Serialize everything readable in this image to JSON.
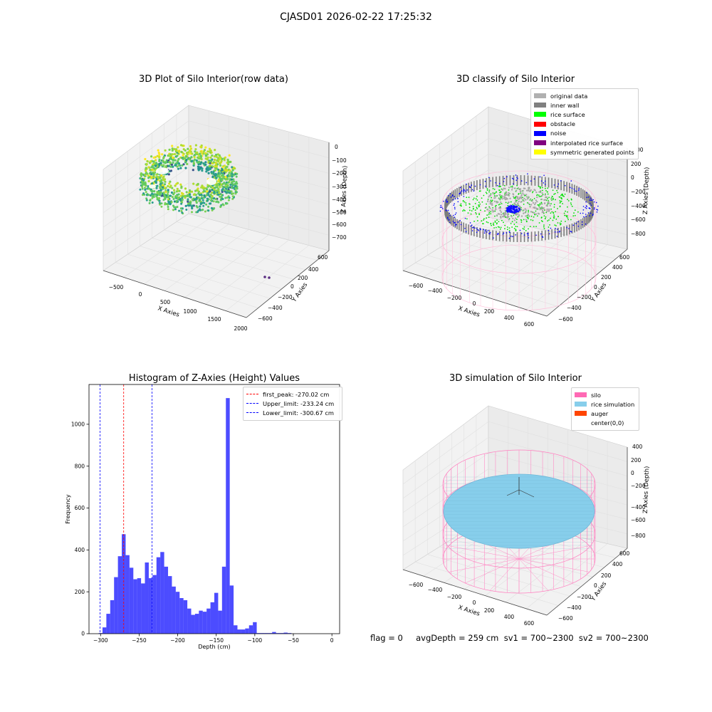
{
  "suptitle": "CJASD01 2026-02-22 17:25:32",
  "footer": "flag = 0     avgDepth = 259 cm  sv1 = 700~2300  sv2 = 700~2300",
  "panels": {
    "raw": {
      "title": "3D Plot of Silo Interior(row data)",
      "xlabel": "X Axies",
      "ylabel": "Y Axies",
      "zlabel": "Z Axies (Depth)",
      "xticks": [
        "−500",
        "0",
        "500",
        "1000",
        "1500",
        "2000"
      ],
      "yticks": [
        "600",
        "400",
        "200",
        "0",
        "−200",
        "−400",
        "−600"
      ],
      "zticks": [
        "0",
        "−100",
        "−200",
        "−300",
        "−400",
        "−500",
        "−600",
        "−700"
      ]
    },
    "classify": {
      "title": "3D classify of Silo Interior",
      "xlabel": "X Axies",
      "ylabel": "Y Axies",
      "zlabel": "Z Axies (Depth)",
      "xticks": [
        "−600",
        "−400",
        "−200",
        "0",
        "200",
        "400",
        "600"
      ],
      "yticks": [
        "600",
        "400",
        "200",
        "0",
        "−200",
        "−400",
        "−600"
      ],
      "zticks": [
        "200",
        "0",
        "−200",
        "−400",
        "−600",
        "−800"
      ],
      "partial_tick": "00",
      "legend": [
        {
          "label": "original data",
          "color": "#b0b0b0"
        },
        {
          "label": "inner wall",
          "color": "#808080"
        },
        {
          "label": "rice surface",
          "color": "#00ff00"
        },
        {
          "label": "obstacle",
          "color": "#ff0000"
        },
        {
          "label": "noise",
          "color": "#0000ff"
        },
        {
          "label": "interpolated rice surface",
          "color": "#800080"
        },
        {
          "label": "symmetric generated points",
          "color": "#ffff00"
        }
      ]
    },
    "histogram": {
      "title": "Histogram of Z-Axies (Height) Values",
      "legend": [
        {
          "label": "first_peak: -270.02 cm",
          "color": "#ff0000"
        },
        {
          "label": "Upper_limit: -233.24 cm",
          "color": "#0000ff"
        },
        {
          "label": "Lower_limit: -300.67 cm",
          "color": "#0000ff"
        }
      ]
    },
    "simulation": {
      "title": "3D simulation of Silo Interior",
      "xlabel": "X Axies",
      "ylabel": "Y Axies",
      "zlabel": "Z Axies (Depth)",
      "xticks": [
        "−600",
        "−400",
        "−200",
        "0",
        "200",
        "400",
        "600"
      ],
      "yticks": [
        "600",
        "400",
        "200",
        "0",
        "−200",
        "−400",
        "−600"
      ],
      "zticks": [
        "400",
        "200",
        "0",
        "−200",
        "−400",
        "−600",
        "−800"
      ],
      "legend": [
        {
          "label": "silo",
          "color": "#ff69b4"
        },
        {
          "label": "rice simulation",
          "color": "#87ceeb"
        },
        {
          "label": "auger",
          "color": "#ff4500"
        },
        {
          "label": "center(0,0)",
          "color": "#ffffff"
        }
      ]
    }
  },
  "chart_data": [
    {
      "type": "scatter",
      "title": "3D Plot of Silo Interior(row data)",
      "xlabel": "X Axies",
      "ylabel": "Y Axies",
      "zlabel": "Z Axies (Depth)",
      "xlim": [
        -600,
        2000
      ],
      "ylim": [
        -600,
        600
      ],
      "zlim": [
        -700,
        0
      ]
    },
    {
      "type": "scatter",
      "title": "3D classify of Silo Interior",
      "xlabel": "X Axies",
      "ylabel": "Y Axies",
      "zlabel": "Z Axies (Depth)",
      "xlim": [
        -600,
        600
      ],
      "ylim": [
        -600,
        600
      ],
      "zlim": [
        -800,
        200
      ]
    },
    {
      "type": "bar",
      "title": "Histogram of Z-Axies (Height) Values",
      "xlabel": "Depth (cm)",
      "ylabel": "Frequency",
      "xlim": [
        -315,
        10
      ],
      "ylim": [
        0,
        1190
      ],
      "xticks": [
        -300,
        -250,
        -200,
        -150,
        -100,
        -50,
        0
      ],
      "yticks": [
        0,
        200,
        400,
        600,
        800,
        1000
      ],
      "bin_start": -302.5,
      "bin_width": 5,
      "values": [
        3,
        30,
        95,
        160,
        270,
        370,
        475,
        375,
        315,
        260,
        265,
        240,
        340,
        265,
        280,
        365,
        390,
        320,
        275,
        225,
        200,
        170,
        160,
        120,
        90,
        95,
        110,
        105,
        120,
        150,
        195,
        110,
        320,
        1125,
        230,
        40,
        20,
        20,
        25,
        40,
        55,
        3,
        3,
        3,
        3,
        8,
        3,
        3,
        5,
        3
      ],
      "vlines": [
        {
          "x": -270.02,
          "color": "#ff0000"
        },
        {
          "x": -233.24,
          "color": "#0000ff"
        },
        {
          "x": -300.67,
          "color": "#0000ff"
        }
      ]
    },
    {
      "type": "scatter",
      "title": "3D simulation of Silo Interior",
      "xlabel": "X Axies",
      "ylabel": "Y Axies",
      "zlabel": "Z Axies (Depth)",
      "xlim": [
        -600,
        600
      ],
      "ylim": [
        -600,
        600
      ],
      "zlim": [
        -800,
        400
      ]
    }
  ]
}
